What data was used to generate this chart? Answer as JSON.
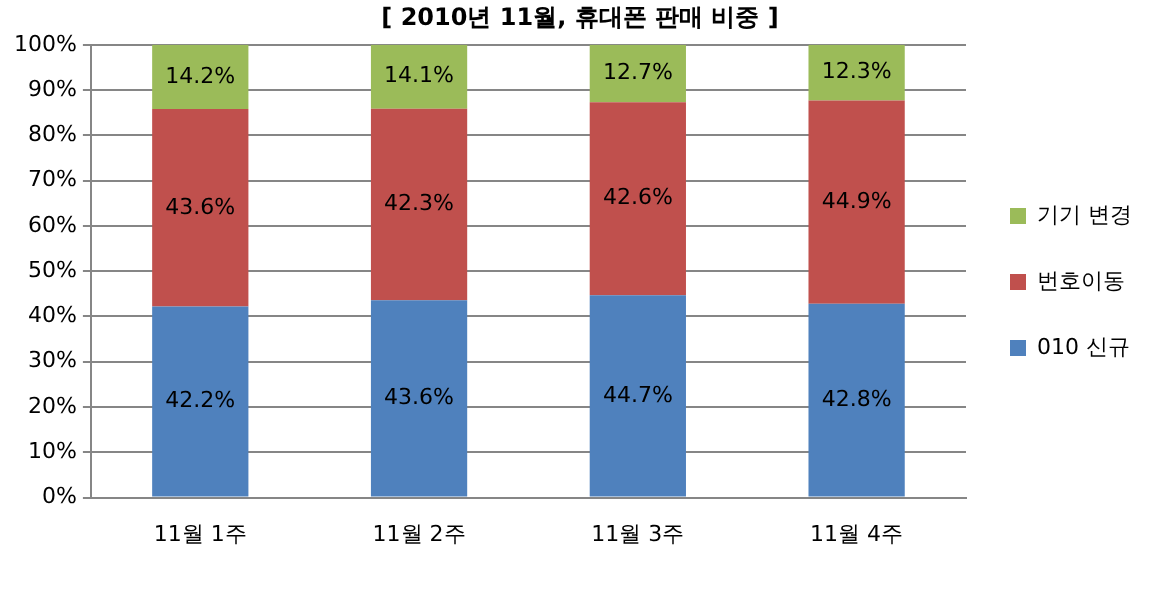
{
  "chart_data": {
    "type": "bar",
    "title": "[ 2010년 11월, 휴대폰 판매 비중 ]",
    "stacked": true,
    "categories": [
      "11월 1주",
      "11월 2주",
      "11월 3주",
      "11월 4주"
    ],
    "series": [
      {
        "name": "010 신규",
        "color": "#4f81bd",
        "values": [
          42.2,
          43.6,
          44.7,
          42.8
        ],
        "value_labels": [
          "42.2%",
          "43.6%",
          "44.7%",
          "42.8%"
        ]
      },
      {
        "name": "번호이동",
        "color": "#c0504d",
        "values": [
          43.6,
          42.3,
          42.6,
          44.9
        ],
        "value_labels": [
          "43.6%",
          "42.3%",
          "42.6%",
          "44.9%"
        ]
      },
      {
        "name": "기기 변경",
        "color": "#9bbb59",
        "values": [
          14.2,
          14.1,
          12.7,
          12.3
        ],
        "value_labels": [
          "14.2%",
          "14.1%",
          "12.7%",
          "12.3%"
        ]
      }
    ],
    "ylim": [
      0,
      100
    ],
    "yticks": [
      {
        "value": 0,
        "label": "0%"
      },
      {
        "value": 10,
        "label": "10%"
      },
      {
        "value": 20,
        "label": "20%"
      },
      {
        "value": 30,
        "label": "30%"
      },
      {
        "value": 40,
        "label": "40%"
      },
      {
        "value": 50,
        "label": "50%"
      },
      {
        "value": 60,
        "label": "60%"
      },
      {
        "value": 70,
        "label": "70%"
      },
      {
        "value": 80,
        "label": "80%"
      },
      {
        "value": 90,
        "label": "90%"
      },
      {
        "value": 100,
        "label": "100%"
      }
    ],
    "grid": "y",
    "legend": "right"
  }
}
